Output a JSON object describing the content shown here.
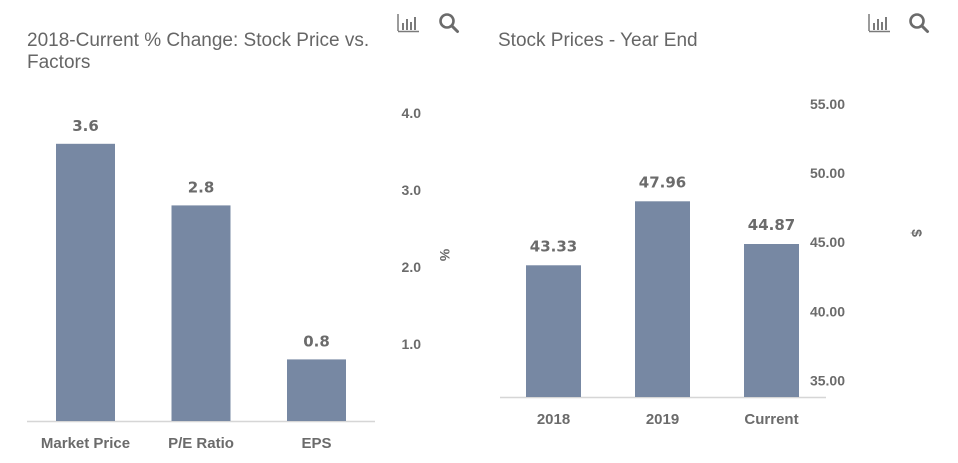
{
  "icons": {
    "chart_type": "bar-chart-icon",
    "zoom": "search-icon"
  },
  "chart_data": [
    {
      "type": "bar",
      "title": "2018-Current % Change: Stock Price vs. Factors",
      "categories": [
        "Market Price",
        "P/E Ratio",
        "EPS"
      ],
      "values": [
        3.6,
        2.8,
        0.8
      ],
      "data_labels": [
        "3.6",
        "2.8",
        "0.8"
      ],
      "xlabel": "",
      "ylabel": "%",
      "y_axis_side": "right",
      "y_ticks": [
        1.0,
        2.0,
        3.0,
        4.0
      ],
      "y_tick_labels": [
        "1.0",
        "2.0",
        "3.0",
        "4.0"
      ],
      "ylim": [
        0,
        4.0
      ],
      "grid": false,
      "color": "#7788a3"
    },
    {
      "type": "bar",
      "title": "Stock Prices - Year End",
      "categories": [
        "2018",
        "2019",
        "Current"
      ],
      "values": [
        43.33,
        47.96,
        44.87
      ],
      "data_labels": [
        "43.33",
        "47.96",
        "44.87"
      ],
      "xlabel": "",
      "ylabel": "$",
      "y_axis_side": "right",
      "y_ticks": [
        35,
        40,
        45,
        50,
        55
      ],
      "y_tick_labels": [
        "35.00",
        "40.00",
        "45.00",
        "50.00",
        "55.00"
      ],
      "ylim": [
        33.8,
        55
      ],
      "grid": false,
      "color": "#7788a3"
    }
  ]
}
